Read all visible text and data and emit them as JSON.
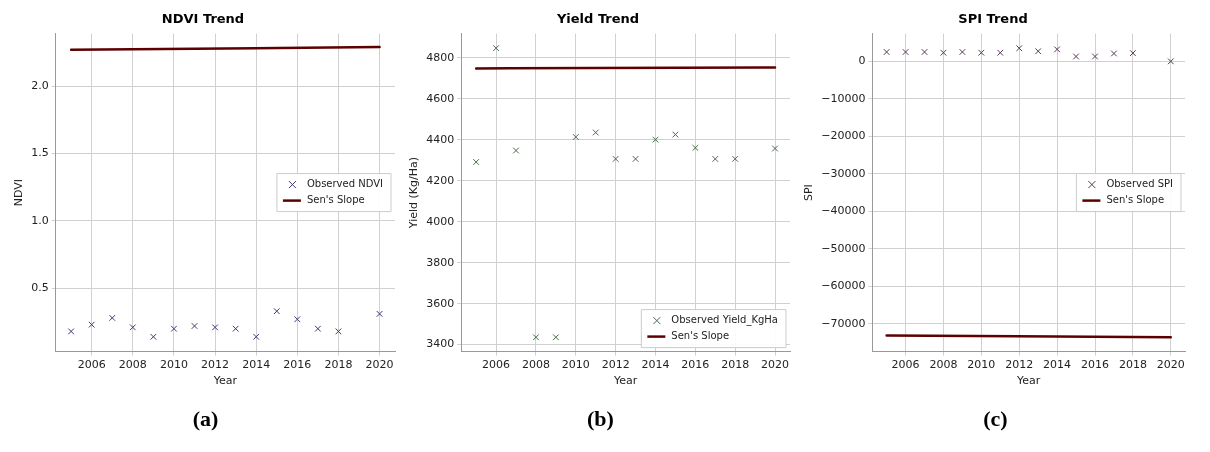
{
  "chart_data": [
    {
      "type": "scatter",
      "title": "NDVI Trend",
      "xlabel": "Year",
      "ylabel": "NDVI",
      "xlim": [
        2004.25,
        2020.75
      ],
      "xticks": [
        2006,
        2008,
        2010,
        2012,
        2014,
        2016,
        2018,
        2020
      ],
      "ylim": [
        0.03,
        2.39
      ],
      "yticks": [
        0.5,
        {
          "value": 1,
          "label": "1.0"
        },
        1.5,
        {
          "value": 2,
          "label": "2.0"
        }
      ],
      "grid": true,
      "legend": "right",
      "annotations": [
        "(a)"
      ],
      "series": [
        {
          "name": "Observed NDVI",
          "marker": "cross",
          "color": "#3b3b78",
          "x": [
            2005,
            2006,
            2007,
            2008,
            2009,
            2010,
            2011,
            2012,
            2013,
            2014,
            2015,
            2016,
            2017,
            2018,
            2020
          ],
          "values": [
            0.18,
            0.23,
            0.28,
            0.21,
            0.14,
            0.2,
            0.22,
            0.21,
            0.2,
            0.14,
            0.33,
            0.27,
            0.2,
            0.18,
            0.31
          ]
        },
        {
          "name": "Sen's Slope",
          "type": "line",
          "color": "#5c0000",
          "marker": "none",
          "x": [
            2005,
            2020
          ],
          "values": [
            2.27,
            2.29
          ]
        }
      ]
    },
    {
      "type": "scatter",
      "title": "Yield Trend",
      "xlabel": "Year",
      "ylabel": "Yield (Kg/Ha)",
      "xlim": [
        2004.25,
        2020.75
      ],
      "xticks": [
        2006,
        2008,
        2010,
        2012,
        2014,
        2016,
        2018,
        2020
      ],
      "ylim": [
        3366,
        4919
      ],
      "yticks": [
        3400,
        3600,
        3800,
        4000,
        4200,
        4400,
        4600,
        4800
      ],
      "grid": true,
      "legend": "bottom right",
      "annotations": [
        "(b)"
      ],
      "series": [
        {
          "name": "Observed Yield_KgHa",
          "marker": "cross",
          "color": "#4a6a4a",
          "x": [
            2005,
            2006,
            2007,
            2008,
            2009,
            2010,
            2011,
            2012,
            2013,
            2014,
            2015,
            2016,
            2017,
            2018,
            2020
          ],
          "values": [
            4292,
            4848,
            4348,
            3436,
            3436,
            4414,
            4436,
            4307,
            4307,
            4401,
            4426,
            4361,
            4307,
            4307,
            4358
          ]
        },
        {
          "name": "Sen's Slope",
          "type": "line",
          "color": "#5c0000",
          "marker": "none",
          "x": [
            2005,
            2020
          ],
          "values": [
            4749,
            4754
          ]
        }
      ]
    },
    {
      "type": "scatter",
      "title": "SPI Trend",
      "xlabel": "Year",
      "ylabel": "SPI",
      "xlim": [
        2004.25,
        2020.75
      ],
      "xticks": [
        2006,
        2008,
        2010,
        2012,
        2014,
        2016,
        2018,
        2020
      ],
      "ylim": [
        -77400,
        7400
      ],
      "yticks": [
        {
          "value": -70000,
          "label": "−70000"
        },
        {
          "value": -60000,
          "label": "−60000"
        },
        {
          "value": -50000,
          "label": "−50000"
        },
        {
          "value": -40000,
          "label": "−40000"
        },
        {
          "value": -30000,
          "label": "−30000"
        },
        {
          "value": -20000,
          "label": "−20000"
        },
        {
          "value": -10000,
          "label": "−10000"
        },
        0
      ],
      "grid": true,
      "legend": "right",
      "annotations": [
        "(c)"
      ],
      "series": [
        {
          "name": "Observed SPI",
          "marker": "cross",
          "color": "#5a3a5a",
          "x": [
            2005,
            2006,
            2007,
            2008,
            2009,
            2010,
            2011,
            2012,
            2013,
            2014,
            2015,
            2016,
            2017,
            2018,
            2020
          ],
          "values": [
            2500,
            2500,
            2500,
            2300,
            2500,
            2300,
            2300,
            3500,
            2700,
            3200,
            1300,
            1300,
            2100,
            2200,
            0
          ]
        },
        {
          "name": "Sen's Slope",
          "type": "line",
          "color": "#5c0000",
          "marker": "none",
          "x": [
            2005,
            2020
          ],
          "values": [
            -73100,
            -73600
          ]
        }
      ]
    }
  ]
}
